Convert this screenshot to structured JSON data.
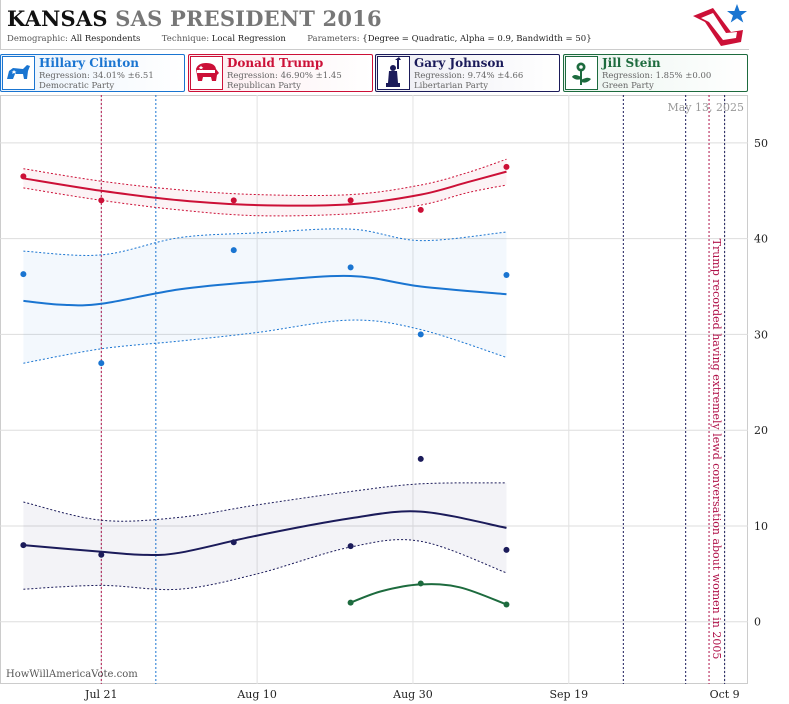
{
  "header": {
    "state": "KANSAS",
    "race": "SAS PRESIDENT 2016",
    "demographic_label": "Demographic:",
    "demographic_value": "All Respondents",
    "technique_label": "Technique:",
    "technique_value": "Local Regression",
    "parameters_label": "Parameters:",
    "parameters_value": "{Degree = Quadratic, Alpha = 0.9, Bandwidth = 50}"
  },
  "candidates": [
    {
      "name": "Hillary Clinton",
      "regression": "Regression: 34.01% ±6.51",
      "party": "Democratic Party",
      "color": "#1a75d1",
      "bg": "#eaf3fc",
      "icon": "donkey-icon"
    },
    {
      "name": "Donald Trump",
      "regression": "Regression: 46.90% ±1.45",
      "party": "Republican Party",
      "color": "#cc1037",
      "bg": "#fcecef",
      "icon": "elephant-icon"
    },
    {
      "name": "Gary Johnson",
      "regression": "Regression: 9.74% ±4.66",
      "party": "Libertarian Party",
      "color": "#1b1b5a",
      "bg": "#ededf3",
      "icon": "statue-of-liberty-icon"
    },
    {
      "name": "Jill Stein",
      "regression": "Regression: 1.85% ±0.00",
      "party": "Green Party",
      "color": "#1d6b3e",
      "bg": "#eaf4ee",
      "icon": "flower-icon"
    }
  ],
  "chart_data": {
    "type": "line",
    "as_of": "May 13, 2025",
    "watermark": "HowWillAmericaVote.com",
    "x_axis": {
      "min": "2016-07-08",
      "max": "2016-10-12",
      "ticks": [
        {
          "date": "2016-07-21",
          "label": "Jul 21"
        },
        {
          "date": "2016-08-10",
          "label": "Aug 10"
        },
        {
          "date": "2016-08-30",
          "label": "Aug 30"
        },
        {
          "date": "2016-09-19",
          "label": "Sep 19"
        },
        {
          "date": "2016-10-09",
          "label": "Oct 9"
        }
      ]
    },
    "y_axis": {
      "min": -6.5,
      "max": 55,
      "ticks": [
        0,
        10,
        20,
        30,
        40,
        50
      ],
      "position": "right",
      "grid": true
    },
    "event_lines": [
      {
        "date": "2016-07-21",
        "color": "#b0134a"
      },
      {
        "date": "2016-07-28",
        "color": "#1a75d1"
      },
      {
        "date": "2016-09-26",
        "color": "#1b1b5a"
      },
      {
        "date": "2016-10-04",
        "color": "#1b1b5a"
      },
      {
        "date": "2016-10-07",
        "color": "#b0134a"
      },
      {
        "date": "2016-10-09",
        "color": "#1b1b5a"
      }
    ],
    "annotation": {
      "date": "2016-10-07",
      "text": "Trump recorded having extremely lewd conversation about women in 2005"
    },
    "series": [
      {
        "name": "Donald Trump",
        "color": "#cc1037",
        "points": [
          [
            "2016-07-11",
            46.5
          ],
          [
            "2016-07-21",
            44.0
          ],
          [
            "2016-08-07",
            44.0
          ],
          [
            "2016-08-22",
            44.0
          ],
          [
            "2016-08-31",
            43.0
          ],
          [
            "2016-09-11",
            47.5
          ]
        ],
        "fit": [
          [
            "2016-07-11",
            46.3
          ],
          [
            "2016-07-21",
            45.0
          ],
          [
            "2016-07-31",
            44.0
          ],
          [
            "2016-08-10",
            43.5
          ],
          [
            "2016-08-22",
            43.6
          ],
          [
            "2016-08-31",
            44.6
          ],
          [
            "2016-09-06",
            45.9
          ],
          [
            "2016-09-11",
            47.0
          ]
        ],
        "upper": [
          [
            "2016-07-11",
            47.3
          ],
          [
            "2016-07-21",
            46.0
          ],
          [
            "2016-07-31",
            45.1
          ],
          [
            "2016-08-10",
            44.6
          ],
          [
            "2016-08-22",
            44.6
          ],
          [
            "2016-08-31",
            45.6
          ],
          [
            "2016-09-06",
            46.9
          ],
          [
            "2016-09-11",
            48.3
          ]
        ],
        "lower": [
          [
            "2016-07-11",
            45.3
          ],
          [
            "2016-07-21",
            44.0
          ],
          [
            "2016-07-31",
            43.0
          ],
          [
            "2016-08-10",
            42.4
          ],
          [
            "2016-08-22",
            42.6
          ],
          [
            "2016-08-31",
            43.5
          ],
          [
            "2016-09-06",
            44.8
          ],
          [
            "2016-09-11",
            45.6
          ]
        ]
      },
      {
        "name": "Hillary Clinton",
        "color": "#1a75d1",
        "points": [
          [
            "2016-07-11",
            36.3
          ],
          [
            "2016-07-21",
            27.0
          ],
          [
            "2016-08-07",
            38.8
          ],
          [
            "2016-08-22",
            37.0
          ],
          [
            "2016-08-31",
            30.0
          ],
          [
            "2016-09-11",
            36.2
          ]
        ],
        "fit": [
          [
            "2016-07-11",
            33.5
          ],
          [
            "2016-07-16",
            33.1
          ],
          [
            "2016-07-21",
            33.2
          ],
          [
            "2016-07-31",
            34.7
          ],
          [
            "2016-08-10",
            35.5
          ],
          [
            "2016-08-22",
            36.1
          ],
          [
            "2016-08-31",
            35.0
          ],
          [
            "2016-09-11",
            34.2
          ]
        ],
        "upper": [
          [
            "2016-07-11",
            38.7
          ],
          [
            "2016-07-21",
            38.3
          ],
          [
            "2016-07-31",
            40.1
          ],
          [
            "2016-08-10",
            40.6
          ],
          [
            "2016-08-22",
            41.0
          ],
          [
            "2016-08-31",
            39.8
          ],
          [
            "2016-09-11",
            40.7
          ]
        ],
        "lower": [
          [
            "2016-07-11",
            27.0
          ],
          [
            "2016-07-21",
            28.5
          ],
          [
            "2016-07-31",
            29.3
          ],
          [
            "2016-08-10",
            30.2
          ],
          [
            "2016-08-22",
            31.5
          ],
          [
            "2016-08-31",
            30.5
          ],
          [
            "2016-09-11",
            27.6
          ]
        ]
      },
      {
        "name": "Gary Johnson",
        "color": "#1b1b5a",
        "points": [
          [
            "2016-07-11",
            8.0
          ],
          [
            "2016-07-21",
            7.0
          ],
          [
            "2016-08-07",
            8.3
          ],
          [
            "2016-08-22",
            7.9
          ],
          [
            "2016-08-31",
            17.0
          ],
          [
            "2016-09-11",
            7.5
          ]
        ],
        "fit": [
          [
            "2016-07-11",
            8.0
          ],
          [
            "2016-07-21",
            7.3
          ],
          [
            "2016-07-26",
            7.0
          ],
          [
            "2016-07-31",
            7.2
          ],
          [
            "2016-08-10",
            9.0
          ],
          [
            "2016-08-22",
            10.8
          ],
          [
            "2016-08-31",
            11.5
          ],
          [
            "2016-09-11",
            9.8
          ]
        ],
        "upper": [
          [
            "2016-07-11",
            12.5
          ],
          [
            "2016-07-21",
            10.6
          ],
          [
            "2016-07-31",
            10.9
          ],
          [
            "2016-08-10",
            12.2
          ],
          [
            "2016-08-22",
            13.6
          ],
          [
            "2016-08-31",
            14.4
          ],
          [
            "2016-09-11",
            14.5
          ]
        ],
        "lower": [
          [
            "2016-07-11",
            3.4
          ],
          [
            "2016-07-21",
            3.8
          ],
          [
            "2016-07-31",
            3.4
          ],
          [
            "2016-08-10",
            5.0
          ],
          [
            "2016-08-22",
            7.8
          ],
          [
            "2016-08-31",
            8.4
          ],
          [
            "2016-09-11",
            5.1
          ]
        ]
      },
      {
        "name": "Jill Stein",
        "color": "#1d6b3e",
        "points": [
          [
            "2016-08-22",
            2.0
          ],
          [
            "2016-08-31",
            4.0
          ],
          [
            "2016-09-11",
            1.8
          ]
        ],
        "fit": [
          [
            "2016-08-22",
            2.0
          ],
          [
            "2016-08-26",
            3.2
          ],
          [
            "2016-08-31",
            3.9
          ],
          [
            "2016-09-05",
            3.6
          ],
          [
            "2016-09-11",
            1.8
          ]
        ]
      }
    ]
  }
}
